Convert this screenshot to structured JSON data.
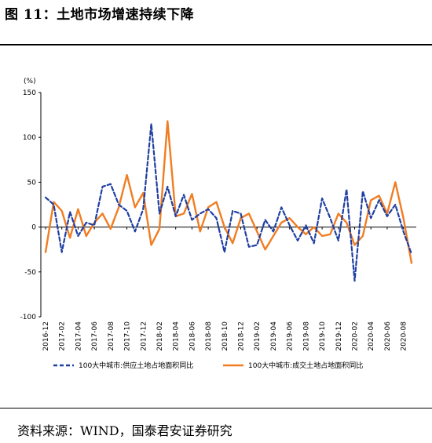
{
  "figure_title": "图 11：土地市场增速持续下降",
  "source_note": "资料来源：WIND，国泰君安证券研究",
  "chart_data": {
    "type": "line",
    "unit_label": "(%)",
    "ylim": [
      -100,
      150
    ],
    "yticks": [
      150,
      100,
      50,
      0,
      -50,
      -100
    ],
    "x_tick_labels": [
      "2016-12",
      "2017-02",
      "2017-04",
      "2017-06",
      "2017-08",
      "2017-10",
      "2017-12",
      "2018-02",
      "2018-04",
      "2018-06",
      "2018-08",
      "2018-10",
      "2018-12",
      "2019-02",
      "2019-04",
      "2019-06",
      "2019-08",
      "2019-10",
      "2019-12",
      "2020-02",
      "2020-04",
      "2020-06",
      "2020-08"
    ],
    "x": [
      "2016-12",
      "2017-01",
      "2017-02",
      "2017-03",
      "2017-04",
      "2017-05",
      "2017-06",
      "2017-07",
      "2017-08",
      "2017-09",
      "2017-10",
      "2017-11",
      "2017-12",
      "2018-01",
      "2018-02",
      "2018-03",
      "2018-04",
      "2018-05",
      "2018-06",
      "2018-07",
      "2018-08",
      "2018-09",
      "2018-10",
      "2018-11",
      "2018-12",
      "2019-01",
      "2019-02",
      "2019-03",
      "2019-04",
      "2019-05",
      "2019-06",
      "2019-07",
      "2019-08",
      "2019-09",
      "2019-10",
      "2019-11",
      "2019-12",
      "2020-01",
      "2020-02",
      "2020-03",
      "2020-04",
      "2020-05",
      "2020-06",
      "2020-07",
      "2020-08",
      "2020-09"
    ],
    "series": [
      {
        "name": "100大中城市:供应土地占地面积同比",
        "style": "dashed",
        "color": "#1f3fa3",
        "values": [
          33,
          25,
          -28,
          17,
          -10,
          5,
          2,
          45,
          48,
          25,
          18,
          -5,
          20,
          115,
          15,
          45,
          12,
          36,
          8,
          15,
          20,
          10,
          -28,
          18,
          15,
          -22,
          -20,
          8,
          -5,
          22,
          2,
          -15,
          2,
          -18,
          32,
          10,
          -15,
          42,
          -60,
          40,
          10,
          30,
          12,
          25,
          -5,
          -30
        ]
      },
      {
        "name": "100大中城市:成交土地占地面积同比",
        "style": "solid",
        "color": "#f07d22",
        "values": [
          -28,
          28,
          18,
          -12,
          20,
          -10,
          5,
          15,
          -2,
          22,
          58,
          22,
          38,
          -20,
          -2,
          118,
          12,
          15,
          37,
          -5,
          22,
          28,
          0,
          -18,
          10,
          15,
          -5,
          -25,
          -10,
          5,
          10,
          0,
          -8,
          0,
          -10,
          -8,
          15,
          5,
          -20,
          -10,
          30,
          35,
          15,
          50,
          10,
          -40
        ]
      }
    ],
    "legend_position": "bottom",
    "grid": false
  }
}
